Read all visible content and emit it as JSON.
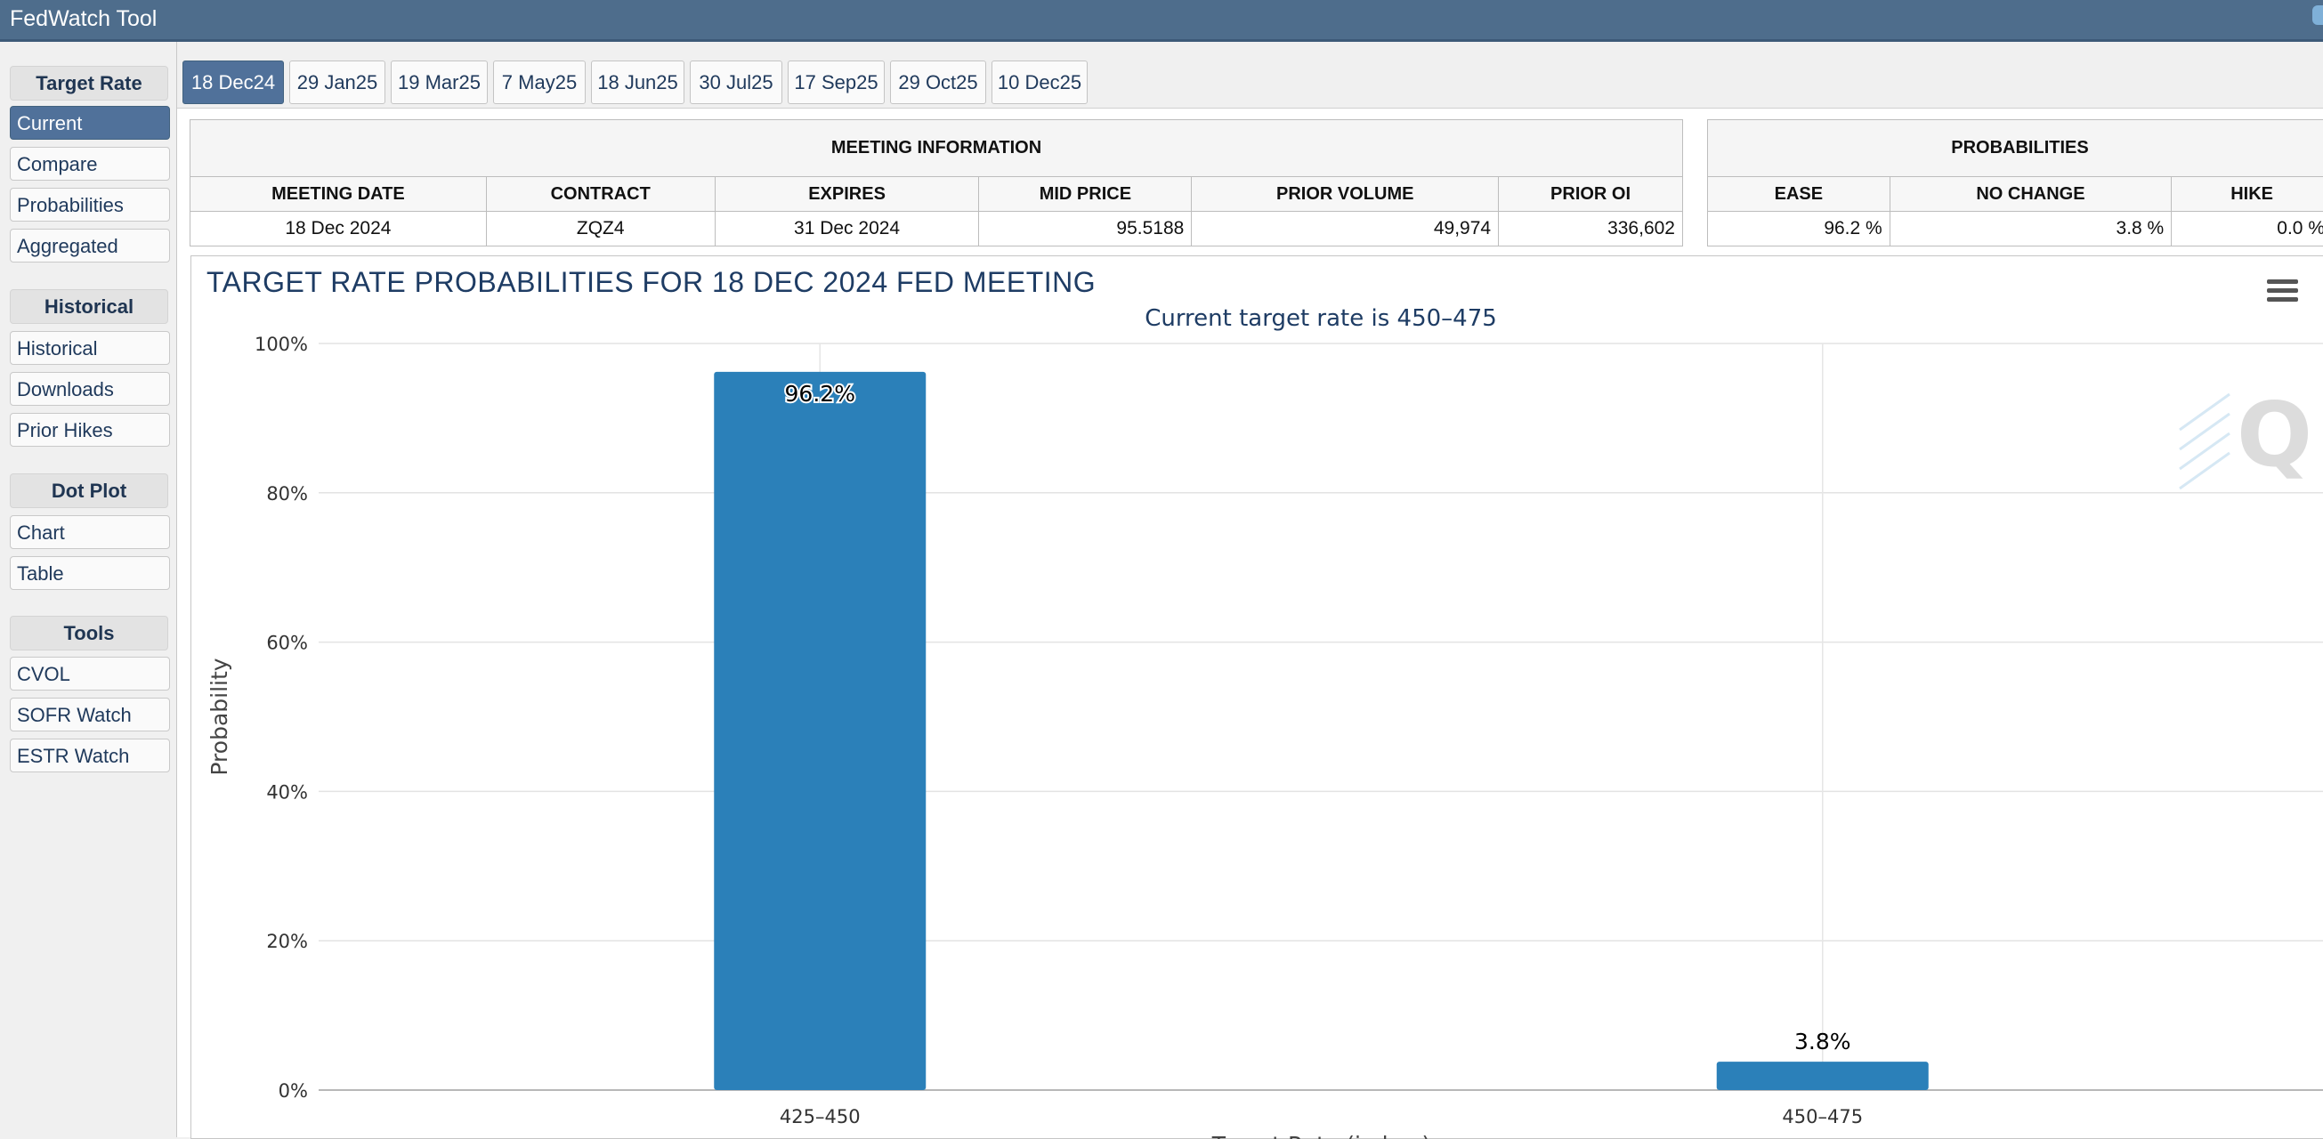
{
  "app": {
    "title": "FedWatch Tool"
  },
  "sidebar": {
    "sections": [
      {
        "title": "Target Rate",
        "items": [
          "Current",
          "Compare",
          "Probabilities",
          "Aggregated"
        ],
        "active": "Current"
      },
      {
        "title": "Historical",
        "items": [
          "Historical",
          "Downloads",
          "Prior Hikes"
        ]
      },
      {
        "title": "Dot Plot",
        "items": [
          "Chart",
          "Table"
        ]
      },
      {
        "title": "Tools",
        "items": [
          "CVOL",
          "SOFR Watch",
          "ESTR Watch"
        ]
      }
    ]
  },
  "tabs": {
    "items": [
      "18 Dec24",
      "29 Jan25",
      "19 Mar25",
      "7 May25",
      "18 Jun25",
      "30 Jul25",
      "17 Sep25",
      "29 Oct25",
      "10 Dec25"
    ],
    "active": "18 Dec24"
  },
  "meeting_info": {
    "heading": "MEETING INFORMATION",
    "headers": [
      "MEETING DATE",
      "CONTRACT",
      "EXPIRES",
      "MID PRICE",
      "PRIOR VOLUME",
      "PRIOR OI"
    ],
    "values": [
      "18 Dec 2024",
      "ZQZ4",
      "31 Dec 2024",
      "95.5188",
      "49,974",
      "336,602"
    ]
  },
  "probabilities": {
    "heading": "PROBABILITIES",
    "headers": [
      "EASE",
      "NO CHANGE",
      "HIKE"
    ],
    "values": [
      "96.2 %",
      "3.8 %",
      "0.0 %"
    ]
  },
  "chart_data": {
    "type": "bar",
    "title": "TARGET RATE PROBABILITIES FOR 18 DEC 2024 FED MEETING",
    "subtitle": "Current target rate is 450–475",
    "xlabel": "Target Rate (in bps)",
    "ylabel": "Probability",
    "categories": [
      "425–450",
      "450–475"
    ],
    "values": [
      96.2,
      3.8
    ],
    "data_labels": [
      "96.2%",
      "3.8%"
    ],
    "ylim": [
      0,
      100
    ],
    "yticks": [
      0,
      20,
      40,
      60,
      80,
      100
    ],
    "ytick_labels": [
      "0%",
      "20%",
      "40%",
      "60%",
      "80%",
      "100%"
    ],
    "grid": true,
    "bar_color": "#2b80b9"
  }
}
